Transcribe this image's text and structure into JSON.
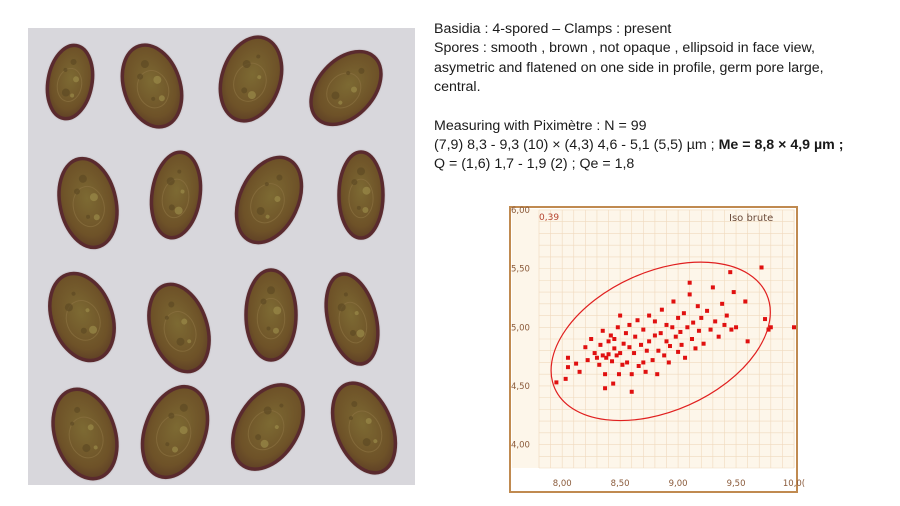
{
  "text": {
    "line1": "Basidia : 4-spored – Clamps : present",
    "line2": "Spores : smooth , brown , not opaque , ellipsoid in face view,",
    "line3": "asymetric and flatened on one side in profile, germ pore large,",
    "line4": "central.",
    "line5": "Measuring with Piximètre : N = 99",
    "line6_plain": "(7,9) 8,3 - 9,3 (10) × (4,3) 4,6 - 5,1 (5,5) µm ;",
    "line6_bold": "Me = 8,8 × 4,9 µm ;",
    "line7": "Q = (1,6) 1,7 - 1,9 (2) ; Qe = 1,8"
  },
  "micrograph": {
    "background": "#d8d7dc",
    "spore_wall_color": "#5a2a2e",
    "spore_fill_color": "#7a5a2a"
  },
  "chart_data": {
    "type": "scatter",
    "corner_label": "0,39",
    "annotation": "Iso brute",
    "xlim": [
      7.8,
      10.0
    ],
    "ylim": [
      3.8,
      6.0
    ],
    "xticks": [
      8.0,
      8.5,
      9.0,
      9.5,
      10.0
    ],
    "xtick_labels": [
      "8,00",
      "8,50",
      "9,00",
      "9,50",
      "10,0("
    ],
    "yticks": [
      4.0,
      4.5,
      5.0,
      5.5,
      6.0
    ],
    "ytick_labels": [
      "4,00",
      "4,50",
      "5,00",
      "5,50",
      "6,00"
    ],
    "grid": true,
    "colors": {
      "points": "#e01010",
      "ellipse": "#e02020",
      "frame": "#c08a50",
      "background": "#fdf6ea",
      "grid": "#f0d9bd"
    },
    "ellipse": {
      "center": [
        8.85,
        4.88
      ],
      "rx": 1.0,
      "ry": 0.22,
      "angle_deg": -24
    },
    "points": [
      [
        7.95,
        4.53
      ],
      [
        8.03,
        4.56
      ],
      [
        8.05,
        4.66
      ],
      [
        8.05,
        4.74
      ],
      [
        8.12,
        4.69
      ],
      [
        8.2,
        4.83
      ],
      [
        8.22,
        4.72
      ],
      [
        8.25,
        4.9
      ],
      [
        8.28,
        4.78
      ],
      [
        8.3,
        4.74
      ],
      [
        8.32,
        4.68
      ],
      [
        8.33,
        4.85
      ],
      [
        8.35,
        4.97
      ],
      [
        8.35,
        4.76
      ],
      [
        8.37,
        4.6
      ],
      [
        8.37,
        4.48
      ],
      [
        8.38,
        4.74
      ],
      [
        8.4,
        4.77
      ],
      [
        8.4,
        4.88
      ],
      [
        8.42,
        4.93
      ],
      [
        8.43,
        4.71
      ],
      [
        8.44,
        4.52
      ],
      [
        8.45,
        4.82
      ],
      [
        8.45,
        4.9
      ],
      [
        8.47,
        4.76
      ],
      [
        8.48,
        5.0
      ],
      [
        8.49,
        4.6
      ],
      [
        8.5,
        4.78
      ],
      [
        8.5,
        5.1
      ],
      [
        8.52,
        4.68
      ],
      [
        8.53,
        4.86
      ],
      [
        8.55,
        4.95
      ],
      [
        8.56,
        4.7
      ],
      [
        8.58,
        4.83
      ],
      [
        8.58,
        5.02
      ],
      [
        8.6,
        4.6
      ],
      [
        8.62,
        4.78
      ],
      [
        8.63,
        4.92
      ],
      [
        8.65,
        5.06
      ],
      [
        8.66,
        4.67
      ],
      [
        8.68,
        4.85
      ],
      [
        8.7,
        4.7
      ],
      [
        8.7,
        4.98
      ],
      [
        8.72,
        4.62
      ],
      [
        8.73,
        4.8
      ],
      [
        8.75,
        5.1
      ],
      [
        8.75,
        4.88
      ],
      [
        8.78,
        4.72
      ],
      [
        8.8,
        4.93
      ],
      [
        8.8,
        5.05
      ],
      [
        8.82,
        4.6
      ],
      [
        8.83,
        4.8
      ],
      [
        8.85,
        4.95
      ],
      [
        8.86,
        5.15
      ],
      [
        8.88,
        4.76
      ],
      [
        8.9,
        4.88
      ],
      [
        8.9,
        5.02
      ],
      [
        8.92,
        4.7
      ],
      [
        8.93,
        4.84
      ],
      [
        8.95,
        5.0
      ],
      [
        8.96,
        5.22
      ],
      [
        8.98,
        4.92
      ],
      [
        9.0,
        4.79
      ],
      [
        9.0,
        5.08
      ],
      [
        9.02,
        4.96
      ],
      [
        9.03,
        4.85
      ],
      [
        9.05,
        5.12
      ],
      [
        9.06,
        4.74
      ],
      [
        9.08,
        5.0
      ],
      [
        9.1,
        5.28
      ],
      [
        9.12,
        4.9
      ],
      [
        9.13,
        5.04
      ],
      [
        9.15,
        4.82
      ],
      [
        9.17,
        5.18
      ],
      [
        9.18,
        4.97
      ],
      [
        9.2,
        5.08
      ],
      [
        9.22,
        4.86
      ],
      [
        9.25,
        5.14
      ],
      [
        9.28,
        4.98
      ],
      [
        9.3,
        5.34
      ],
      [
        9.32,
        5.05
      ],
      [
        9.35,
        4.92
      ],
      [
        9.38,
        5.2
      ],
      [
        9.4,
        5.02
      ],
      [
        9.42,
        5.1
      ],
      [
        9.45,
        5.47
      ],
      [
        9.46,
        4.98
      ],
      [
        9.48,
        5.3
      ],
      [
        9.5,
        5.0
      ],
      [
        9.58,
        5.22
      ],
      [
        9.6,
        4.88
      ],
      [
        9.72,
        5.51
      ],
      [
        9.75,
        5.07
      ],
      [
        9.78,
        4.98
      ],
      [
        9.8,
        5.0
      ],
      [
        10.0,
        5.0
      ],
      [
        8.15,
        4.62
      ],
      [
        8.6,
        4.45
      ],
      [
        9.1,
        5.38
      ]
    ]
  }
}
